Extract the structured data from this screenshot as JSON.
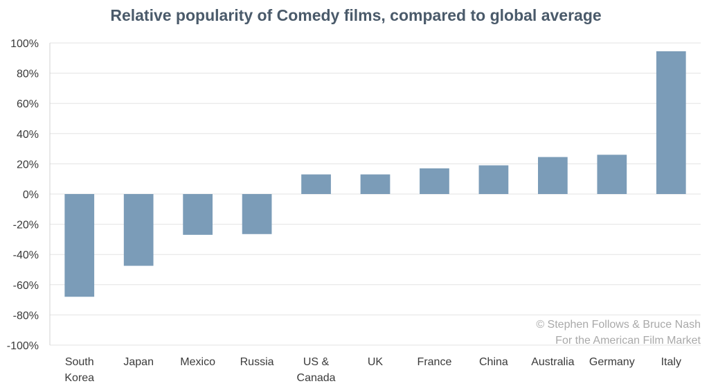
{
  "chart_data": {
    "type": "bar",
    "title": "Relative popularity of Comedy films, compared to global average",
    "categories": [
      [
        "South",
        "Korea"
      ],
      [
        "Japan"
      ],
      [
        "Mexico"
      ],
      [
        "Russia"
      ],
      [
        "US &",
        "Canada"
      ],
      [
        "UK"
      ],
      [
        "France"
      ],
      [
        "China"
      ],
      [
        "Australia"
      ],
      [
        "Germany"
      ],
      [
        "Italy"
      ]
    ],
    "values": [
      -68,
      -47.5,
      -27,
      -26.5,
      13,
      13,
      17,
      19,
      24.5,
      26,
      94.5
    ],
    "ylim": [
      -100,
      100
    ],
    "yticks": [
      100,
      80,
      60,
      40,
      20,
      0,
      -20,
      -40,
      -60,
      -80,
      -100
    ],
    "ytick_labels": [
      "100%",
      "80%",
      "60%",
      "40%",
      "20%",
      "0%",
      "-20%",
      "-40%",
      "-60%",
      "-80%",
      "-100%"
    ],
    "xlabel": "",
    "ylabel": "",
    "bar_color": "#7b9cb8",
    "grid": true
  },
  "credit": {
    "line1": "© Stephen Follows & Bruce Nash",
    "line2": "For the American Film Market"
  }
}
